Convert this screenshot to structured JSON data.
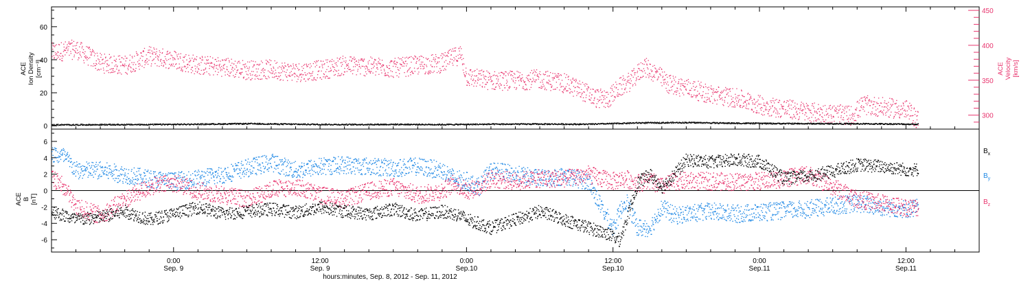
{
  "chart_data": [
    {
      "type": "scatter",
      "panel": "top",
      "xlabel": "hours:minutes, Sep.  8, 2012 - Sep. 11, 2012",
      "x_ticks": [
        {
          "hour": 10,
          "label": "0:00",
          "sublabel": "Sep. 9"
        },
        {
          "hour": 22,
          "label": "12:00",
          "sublabel": "Sep. 9"
        },
        {
          "hour": 34,
          "label": "0:00",
          "sublabel": "Sep.10"
        },
        {
          "hour": 46,
          "label": "12:00",
          "sublabel": "Sep.10"
        },
        {
          "hour": 58,
          "label": "0:00",
          "sublabel": "Sep.11"
        },
        {
          "hour": 70,
          "label": "12:00",
          "sublabel": "Sep.11"
        }
      ],
      "xlim_hours": [
        0,
        76
      ],
      "left_axis": {
        "label_lines": [
          "ACE",
          "Ion Density",
          "[cm⁻³]"
        ],
        "ylim": [
          -2,
          72
        ],
        "ticks": [
          0,
          20,
          40,
          60
        ]
      },
      "right_axis": {
        "label_lines": [
          "ACE",
          "Velocity",
          "[km/s]"
        ],
        "ylim": [
          280,
          455
        ],
        "ticks": [
          300,
          350,
          400,
          450
        ],
        "color": "#e8336d"
      },
      "series": [
        {
          "name": "Ion Density",
          "axis": "left",
          "color": "#000000",
          "x_hours": [
            0,
            4,
            8,
            12,
            16,
            20,
            24,
            28,
            32,
            36,
            40,
            44,
            48,
            52,
            56,
            60,
            64,
            68,
            71
          ],
          "y": [
            0.8,
            0.9,
            1.0,
            1.2,
            1.5,
            1.2,
            1.0,
            1.1,
            1.0,
            1.2,
            1.3,
            1.2,
            2.0,
            2.2,
            1.8,
            1.6,
            1.5,
            1.4,
            1.2
          ]
        },
        {
          "name": "Velocity",
          "axis": "right",
          "color": "#e8336d",
          "x_hours": [
            0,
            2,
            4,
            6,
            8,
            10,
            12,
            14,
            16,
            18,
            20,
            22,
            24,
            26,
            28,
            30,
            32,
            33.5,
            34,
            36,
            38,
            40,
            42,
            43.5,
            44.5,
            45.5,
            46.5,
            47.5,
            48.5,
            49.5,
            50.5,
            52,
            54,
            56,
            58,
            60,
            62,
            64,
            65.5,
            66.5,
            68,
            70,
            71
          ],
          "y": [
            390,
            395,
            375,
            372,
            385,
            380,
            372,
            370,
            365,
            366,
            362,
            365,
            372,
            370,
            368,
            372,
            375,
            388,
            355,
            350,
            350,
            352,
            346,
            335,
            325,
            323,
            340,
            350,
            370,
            360,
            345,
            340,
            330,
            325,
            315,
            310,
            305,
            302,
            300,
            315,
            312,
            308,
            293
          ]
        }
      ]
    },
    {
      "type": "scatter",
      "panel": "bottom",
      "xlim_hours": [
        0,
        76
      ],
      "left_axis": {
        "label_lines": [
          "ACE",
          "B",
          "[nT]"
        ],
        "ylim": [
          -7.5,
          7.5
        ],
        "ticks": [
          -6,
          -4,
          -2,
          0,
          2,
          4,
          6
        ]
      },
      "zero_line": true,
      "series": [
        {
          "name": "Bx",
          "color": "#000000",
          "x_hours": [
            0,
            2,
            4,
            6,
            8,
            10,
            12,
            14,
            16,
            18,
            20,
            22,
            24,
            26,
            28,
            30,
            32,
            33.5,
            34,
            36,
            38,
            40,
            42,
            44,
            45.5,
            46.5,
            47,
            48,
            49,
            50,
            51,
            52,
            54,
            56,
            58,
            60,
            62,
            64,
            66,
            68,
            70,
            71
          ],
          "y": [
            -2.5,
            -3.5,
            -3.2,
            -2.5,
            -3.5,
            -2.8,
            -2.0,
            -2.8,
            -2.5,
            -2.2,
            -2.6,
            -2.0,
            -2.5,
            -2.8,
            -2.2,
            -3.0,
            -2.5,
            -3.0,
            -3.5,
            -4.5,
            -3.5,
            -2.5,
            -3.5,
            -4.5,
            -5.2,
            -6.0,
            -4.0,
            1.0,
            2.0,
            0.5,
            2.0,
            3.8,
            3.5,
            3.8,
            3.6,
            1.5,
            1.8,
            2.4,
            3.2,
            3.0,
            2.6,
            2.6
          ]
        },
        {
          "name": "By",
          "color": "#1e88e5",
          "x_hours": [
            0,
            1,
            2,
            4,
            6,
            8,
            10,
            12,
            14,
            16,
            18,
            20,
            22,
            24,
            26,
            28,
            30,
            32,
            33,
            34,
            35,
            36,
            38,
            40,
            42,
            44,
            45,
            46,
            47,
            48,
            49,
            50,
            51,
            52,
            54,
            56,
            58,
            60,
            62,
            64,
            66,
            68,
            70,
            71
          ],
          "y": [
            4.5,
            4.2,
            2.5,
            2.5,
            2.0,
            1.5,
            1.2,
            1.5,
            2.0,
            2.8,
            3.5,
            2.5,
            3.0,
            3.2,
            3.0,
            2.8,
            3.0,
            2.5,
            1.5,
            1.2,
            0.5,
            2.5,
            2.0,
            1.5,
            1.8,
            1.2,
            -2.0,
            -4.5,
            -1.0,
            -4.5,
            -4.5,
            -2.0,
            -3.0,
            -2.8,
            -2.5,
            -2.8,
            -2.6,
            -2.4,
            -2.2,
            -1.8,
            -1.5,
            -2.0,
            -2.2,
            -2.0
          ]
        },
        {
          "name": "Bz",
          "color": "#e8336d",
          "x_hours": [
            0,
            1,
            2,
            4,
            6,
            8,
            10,
            12,
            14,
            16,
            18,
            20,
            22,
            24,
            26,
            28,
            30,
            32,
            33,
            34,
            35,
            36,
            38,
            40,
            42,
            44,
            45,
            46,
            47,
            48,
            49,
            50,
            51,
            52,
            54,
            56,
            58,
            60,
            62,
            64,
            66,
            68,
            70,
            71
          ],
          "y": [
            1.5,
            0.5,
            -2.0,
            -3.0,
            -1.0,
            0.5,
            1.0,
            0.0,
            -0.5,
            -1.0,
            0.2,
            0.5,
            -0.5,
            -1.0,
            0.0,
            0.5,
            -0.5,
            0.0,
            1.0,
            0.0,
            0.5,
            1.5,
            1.2,
            1.5,
            1.5,
            2.0,
            1.5,
            1.2,
            1.5,
            1.0,
            1.2,
            0.5,
            1.2,
            1.2,
            1.2,
            1.1,
            1.2,
            1.5,
            2.0,
            0.5,
            -1.0,
            -1.5,
            -2.0,
            -2.0
          ]
        }
      ]
    }
  ]
}
